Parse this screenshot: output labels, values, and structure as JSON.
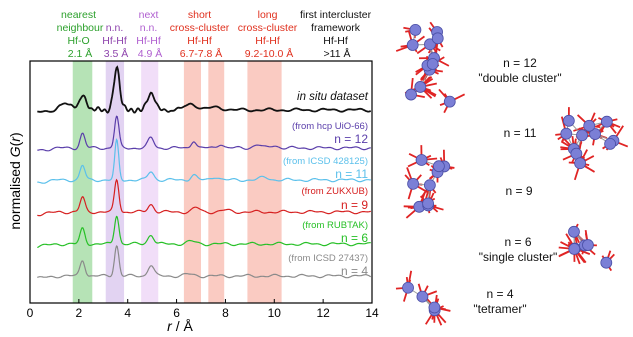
{
  "chart_data": {
    "type": "line",
    "xlabel_var": "r",
    "xlabel_unit": " / Å",
    "ylabel_prefix": "normalised ",
    "ylabel_var": "G",
    "ylabel_suffix": "(",
    "ylabel_var2": "r",
    "ylabel_close": ")",
    "xlim": [
      0,
      14
    ],
    "xticks": [
      0,
      2,
      4,
      6,
      8,
      10,
      12,
      14
    ],
    "header_labels": [
      {
        "lines": [
          "nearest",
          "neighbour"
        ],
        "color": "#2ca02c"
      },
      {
        "lines": [
          "Hf-O",
          "2.1 Å"
        ],
        "color": "#2ca02c"
      },
      {
        "lines": [
          "n.n.",
          "Hf-Hf",
          "3.5 Å"
        ],
        "color": "#8e44ad"
      },
      {
        "lines": [
          "next",
          "n.n.",
          "Hf-Hf",
          "4.9 Å"
        ],
        "color": "#b05fd0"
      },
      {
        "lines": [
          "short",
          "cross-cluster",
          "Hf-Hf",
          "6.7-7.8 Å"
        ],
        "color": "#e0301e"
      },
      {
        "lines": [
          "long",
          "cross-cluster",
          "Hf-Hf",
          "9.2-10.0 Å"
        ],
        "color": "#e0301e"
      },
      {
        "lines": [
          "first intercluster",
          "framework",
          "Hf-Hf",
          ">11 Å"
        ],
        "color": "#111111"
      }
    ],
    "bands": [
      {
        "from": 1.75,
        "to": 2.55,
        "color": "#9ed99e"
      },
      {
        "from": 3.1,
        "to": 3.85,
        "color": "#d8c4ee"
      },
      {
        "from": 4.55,
        "to": 5.25,
        "color": "#ecd3f5"
      },
      {
        "from": 6.3,
        "to": 7.0,
        "color": "#f8b9ad"
      },
      {
        "from": 7.3,
        "to": 7.95,
        "color": "#f8b9ad"
      },
      {
        "from": 8.9,
        "to": 10.3,
        "color": "#f8b9ad"
      }
    ],
    "series": [
      {
        "label": "in situ dataset",
        "color": "#111111",
        "offset": 5,
        "peaks": [
          [
            1.45,
            0.35,
            0.25
          ],
          [
            2.15,
            0.9,
            0.14
          ],
          [
            3.55,
            2.5,
            0.12
          ],
          [
            4.95,
            0.85,
            0.18
          ],
          [
            6.6,
            0.35,
            0.25
          ],
          [
            7.6,
            0.15,
            0.3
          ]
        ],
        "noise": true
      },
      {
        "label": "(from hcp UiO-66)",
        "n": "n = 12",
        "color": "#5a3eaa",
        "offset": 4,
        "peaks": [
          [
            2.15,
            0.85,
            0.1
          ],
          [
            3.55,
            1.85,
            0.09
          ],
          [
            4.95,
            0.6,
            0.12
          ],
          [
            6.7,
            0.45,
            0.1
          ],
          [
            7.8,
            0.25,
            0.12
          ],
          [
            9.3,
            0.2,
            0.15
          ],
          [
            10.0,
            0.15,
            0.15
          ]
        ]
      },
      {
        "label": "(from ICSD 428125)",
        "n": "n = 11",
        "color": "#5bc0eb",
        "offset": 3,
        "peaks": [
          [
            2.15,
            0.85,
            0.1
          ],
          [
            3.55,
            2.3,
            0.08
          ],
          [
            4.95,
            0.5,
            0.12
          ],
          [
            6.7,
            0.3,
            0.12
          ],
          [
            7.6,
            0.2,
            0.15
          ],
          [
            9.6,
            0.15,
            0.2
          ]
        ]
      },
      {
        "label": "(from ZUKXUB)",
        "n": "n = 9",
        "color": "#d62020",
        "offset": 2,
        "peaks": [
          [
            2.15,
            0.85,
            0.1
          ],
          [
            3.55,
            1.9,
            0.09
          ],
          [
            4.95,
            0.45,
            0.12
          ],
          [
            6.8,
            0.25,
            0.15
          ],
          [
            8.0,
            0.1,
            0.2
          ]
        ]
      },
      {
        "label": "(from RUBTAK)",
        "n": "n = 6",
        "color": "#27c027",
        "offset": 1,
        "peaks": [
          [
            2.15,
            0.9,
            0.1
          ],
          [
            3.55,
            1.7,
            0.09
          ],
          [
            4.95,
            0.55,
            0.12
          ],
          [
            6.6,
            0.15,
            0.2
          ]
        ]
      },
      {
        "label": "(from ICSD 27437)",
        "n": "n = 4",
        "color": "#8a8a8a",
        "offset": 0,
        "peaks": [
          [
            2.15,
            0.95,
            0.1
          ],
          [
            3.55,
            1.8,
            0.09
          ],
          [
            4.95,
            0.65,
            0.12
          ],
          [
            6.5,
            0.1,
            0.2
          ]
        ]
      }
    ],
    "structure_labels": [
      {
        "n": "n = 12",
        "desc": "\"double cluster\""
      },
      {
        "n": "n = 11",
        "desc": ""
      },
      {
        "n": "n = 9",
        "desc": ""
      },
      {
        "n": "n = 6",
        "desc": "\"single cluster\""
      },
      {
        "n": "n = 4",
        "desc": "\"tetramer\""
      }
    ],
    "colors": {
      "hf_atom": "#7b7fd6",
      "o_atom": "#e02424"
    }
  }
}
